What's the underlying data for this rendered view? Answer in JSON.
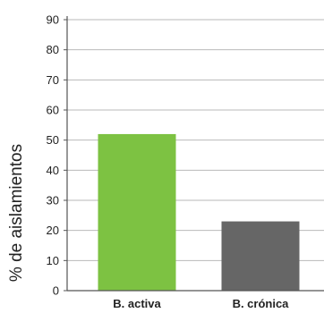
{
  "chart_data": {
    "type": "bar",
    "categories": [
      "B. activa",
      "B. crónica"
    ],
    "values": [
      52,
      23
    ],
    "ylabel": "% de aislamientos",
    "xlabel": "",
    "ylim": [
      0,
      90
    ],
    "yticks": [
      "0",
      "10",
      "20",
      "30",
      "40",
      "50",
      "60",
      "70",
      "80",
      "90"
    ],
    "grid": true,
    "bar_colors": [
      "#7dc242",
      "#666666"
    ],
    "grid_color": "#b9b9b9",
    "axis_color": "#555555"
  }
}
